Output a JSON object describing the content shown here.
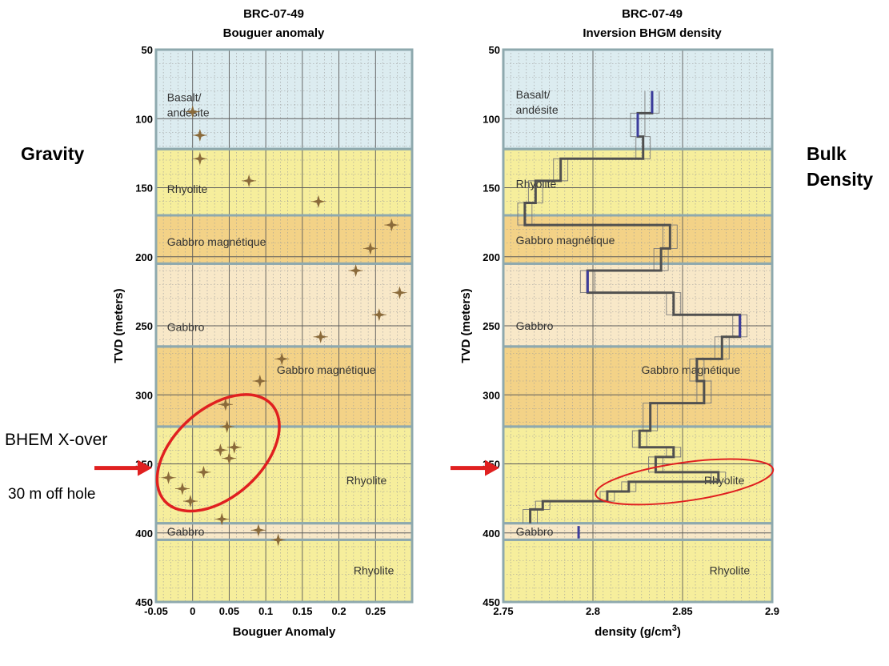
{
  "side_labels": {
    "left": "Gravity",
    "right_line1": "Bulk",
    "right_line2": "Density",
    "bhem": "BHEM X-over",
    "offset": "30 m off hole"
  },
  "colors": {
    "basalt": "#dcecf0",
    "rhyolite": "#f6ee9c",
    "gabbro_mag": "#f3d287",
    "gabbro": "#f8e8c8",
    "frame": "#8ea9ae",
    "grid_major": "#5a5a5a",
    "grid_minor": "#9a9a9a",
    "marker": "#8a6a3a",
    "annotation": "#e02020",
    "density_dark": "#505050",
    "density_blue": "#3c3c9c"
  },
  "chart_data": [
    {
      "type": "scatter",
      "title": "BRC-07-49",
      "subtitle": "Bouguer anomaly",
      "xlabel": "Bouguer Anomaly",
      "ylabel": "TVD (meters)",
      "xlim": [
        -0.05,
        0.3
      ],
      "ylim": [
        50,
        450
      ],
      "xticks": [
        -0.05,
        0,
        0.05,
        0.1,
        0.15,
        0.2,
        0.25
      ],
      "xtick_labels": [
        "-0.05",
        "0",
        "0.05",
        "0.1",
        "0.15",
        "0.2",
        "0.25"
      ],
      "yticks": [
        50,
        100,
        150,
        200,
        250,
        300,
        350,
        400,
        450
      ],
      "ytick_labels": [
        "50",
        "100",
        "150",
        "200",
        "250",
        "300",
        "350",
        "400",
        "450"
      ],
      "layers": [
        {
          "name": "Basalt/\nandésite",
          "top": 50,
          "bottom": 122,
          "kind": "basalt",
          "label_x": -0.035,
          "label_y": 90
        },
        {
          "name": "Rhyolite",
          "top": 122,
          "bottom": 170,
          "kind": "rhyolite",
          "label_x": -0.035,
          "label_y": 151
        },
        {
          "name": "Gabbro magnétique",
          "top": 170,
          "bottom": 205,
          "kind": "gabbro_mag",
          "label_x": -0.035,
          "label_y": 189
        },
        {
          "name": "Gabbro",
          "top": 205,
          "bottom": 265,
          "kind": "gabbro",
          "label_x": -0.035,
          "label_y": 251
        },
        {
          "name": "Gabbro magnétique",
          "top": 265,
          "bottom": 323,
          "kind": "gabbro_mag",
          "label_x": 0.115,
          "label_y": 282
        },
        {
          "name": "Rhyolite",
          "top": 323,
          "bottom": 393,
          "kind": "rhyolite",
          "label_x": 0.21,
          "label_y": 362
        },
        {
          "name": "Gabbro",
          "top": 393,
          "bottom": 405,
          "kind": "gabbro",
          "label_x": -0.035,
          "label_y": 399
        },
        {
          "name": "Rhyolite",
          "top": 405,
          "bottom": 450,
          "kind": "rhyolite",
          "label_x": 0.22,
          "label_y": 427
        }
      ],
      "points": [
        {
          "x": 0.0,
          "y": 95
        },
        {
          "x": 0.01,
          "y": 112
        },
        {
          "x": 0.01,
          "y": 129
        },
        {
          "x": 0.077,
          "y": 145
        },
        {
          "x": 0.172,
          "y": 160
        },
        {
          "x": 0.272,
          "y": 177
        },
        {
          "x": 0.243,
          "y": 194
        },
        {
          "x": 0.223,
          "y": 210
        },
        {
          "x": 0.283,
          "y": 226
        },
        {
          "x": 0.255,
          "y": 242
        },
        {
          "x": 0.175,
          "y": 258
        },
        {
          "x": 0.122,
          "y": 274
        },
        {
          "x": 0.092,
          "y": 290
        },
        {
          "x": 0.045,
          "y": 307
        },
        {
          "x": 0.047,
          "y": 323
        },
        {
          "x": 0.057,
          "y": 338
        },
        {
          "x": 0.038,
          "y": 340
        },
        {
          "x": 0.05,
          "y": 346
        },
        {
          "x": 0.015,
          "y": 356
        },
        {
          "x": -0.033,
          "y": 360
        },
        {
          "x": -0.014,
          "y": 368
        },
        {
          "x": -0.003,
          "y": 377
        },
        {
          "x": 0.04,
          "y": 390
        },
        {
          "x": 0.09,
          "y": 398
        },
        {
          "x": 0.117,
          "y": 405
        }
      ],
      "ellipse": {
        "cx": 0.035,
        "cy": 342,
        "rx": 90,
        "ry": 55,
        "rotation_deg": -42,
        "note": "rx/ry in px-free data-independent units handled by script"
      },
      "arrow_depth": 353
    },
    {
      "type": "line",
      "title": "BRC-07-49",
      "subtitle": "Inversion BHGM density",
      "xlabel": "density (g/cm",
      "xlabel_sup": "3",
      "xlabel_end": ")",
      "ylabel": "TVD (meters)",
      "xlim": [
        2.75,
        2.9
      ],
      "ylim": [
        50,
        450
      ],
      "xticks": [
        2.75,
        2.8,
        2.85,
        2.9
      ],
      "xtick_labels": [
        "2.75",
        "2.8",
        "2.85",
        "2.9"
      ],
      "yticks": [
        50,
        100,
        150,
        200,
        250,
        300,
        350,
        400,
        450
      ],
      "ytick_labels": [
        "50",
        "100",
        "150",
        "200",
        "250",
        "300",
        "350",
        "400",
        "450"
      ],
      "layers": [
        {
          "name": "Basalt/\nandésite",
          "top": 50,
          "bottom": 122,
          "kind": "basalt",
          "label_x": 2.757,
          "label_y": 88
        },
        {
          "name": "Rhyolite",
          "top": 122,
          "bottom": 170,
          "kind": "rhyolite",
          "label_x": 2.757,
          "label_y": 147
        },
        {
          "name": "Gabbro magnétique",
          "top": 170,
          "bottom": 205,
          "kind": "gabbro_mag",
          "label_x": 2.757,
          "label_y": 188
        },
        {
          "name": "Gabbro",
          "top": 205,
          "bottom": 265,
          "kind": "gabbro",
          "label_x": 2.757,
          "label_y": 250
        },
        {
          "name": "Gabbro magnétique",
          "top": 265,
          "bottom": 323,
          "kind": "gabbro_mag",
          "label_x": 2.827,
          "label_y": 282
        },
        {
          "name": "Rhyolite",
          "top": 323,
          "bottom": 393,
          "kind": "rhyolite",
          "label_x": 2.862,
          "label_y": 362
        },
        {
          "name": "Gabbro",
          "top": 393,
          "bottom": 405,
          "kind": "gabbro",
          "label_x": 2.757,
          "label_y": 399
        },
        {
          "name": "Rhyolite",
          "top": 405,
          "bottom": 450,
          "kind": "rhyolite",
          "label_x": 2.865,
          "label_y": 427
        }
      ],
      "series": [
        {
          "name": "density",
          "steps": [
            {
              "y0": 80,
              "y1": 96,
              "x": 2.833
            },
            {
              "y0": 96,
              "y1": 113,
              "x": 2.825
            },
            {
              "y0": 113,
              "y1": 129,
              "x": 2.828
            },
            {
              "y0": 129,
              "y1": 145,
              "x": 2.782
            },
            {
              "y0": 145,
              "y1": 161,
              "x": 2.768
            },
            {
              "y0": 161,
              "y1": 177,
              "x": 2.762
            },
            {
              "y0": 177,
              "y1": 194,
              "x": 2.843
            },
            {
              "y0": 194,
              "y1": 210,
              "x": 2.838
            },
            {
              "y0": 210,
              "y1": 226,
              "x": 2.797
            },
            {
              "y0": 226,
              "y1": 242,
              "x": 2.845
            },
            {
              "y0": 242,
              "y1": 258,
              "x": 2.882
            },
            {
              "y0": 258,
              "y1": 274,
              "x": 2.872
            },
            {
              "y0": 274,
              "y1": 290,
              "x": 2.858
            },
            {
              "y0": 290,
              "y1": 306,
              "x": 2.862
            },
            {
              "y0": 306,
              "y1": 326,
              "x": 2.832
            },
            {
              "y0": 326,
              "y1": 338,
              "x": 2.826
            },
            {
              "y0": 338,
              "y1": 345,
              "x": 2.845
            },
            {
              "y0": 345,
              "y1": 356,
              "x": 2.835
            },
            {
              "y0": 356,
              "y1": 363,
              "x": 2.87
            },
            {
              "y0": 363,
              "y1": 370,
              "x": 2.82
            },
            {
              "y0": 370,
              "y1": 377,
              "x": 2.808
            },
            {
              "y0": 377,
              "y1": 383,
              "x": 2.772
            },
            {
              "y0": 383,
              "y1": 393,
              "x": 2.765
            }
          ],
          "blue_segments": [
            {
              "y0": 80,
              "y1": 96
            },
            {
              "y0": 96,
              "y1": 113
            },
            {
              "y0": 210,
              "y1": 226
            },
            {
              "y0": 242,
              "y1": 258
            }
          ]
        }
      ],
      "gabbro_bar": {
        "x": 2.792,
        "y0": 395,
        "y1": 404
      },
      "ellipse": {
        "cx": 2.851,
        "cy": 363,
        "rx": 112,
        "ry": 24,
        "rotation_deg": -8
      },
      "arrow_depth": 353
    }
  ]
}
